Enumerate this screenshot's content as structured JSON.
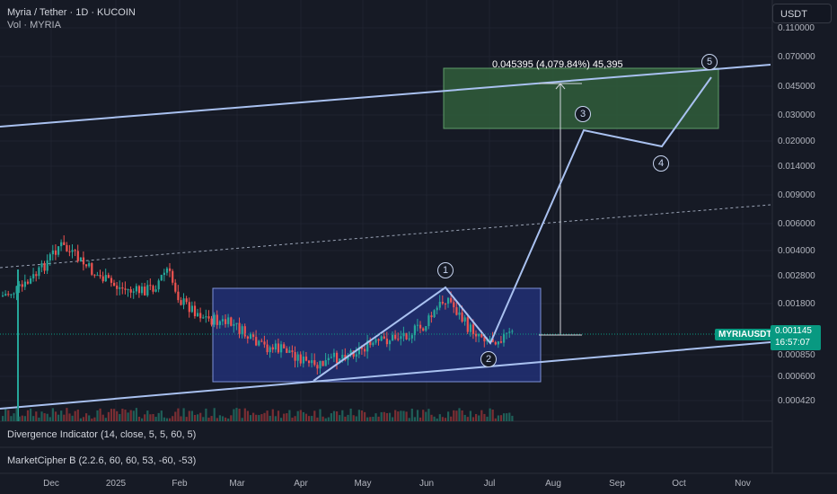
{
  "header": {
    "title": "Myria / Tether · 1D · KUCOIN",
    "volume_label": "Vol · MYRIA",
    "currency_button": "USDT"
  },
  "price_axis": {
    "ticks": [
      "0.110000",
      "0.070000",
      "0.045000",
      "0.030000",
      "0.020000",
      "0.014000",
      "0.009000",
      "0.006000",
      "0.004000",
      "0.002800",
      "0.001800",
      "0.000850",
      "0.000600",
      "0.000420"
    ]
  },
  "time_axis": {
    "ticks": [
      "Dec",
      "2025",
      "Feb",
      "Mar",
      "Apr",
      "May",
      "Jun",
      "Jul",
      "Aug",
      "Sep",
      "Oct",
      "Nov"
    ]
  },
  "symbol_tag": "MYRIAUSDT",
  "price_tag": {
    "price": "0.001145",
    "countdown": "16:57:07"
  },
  "measurement_label": "0.045395 (4,079.84%) 45,395",
  "wave_labels": [
    "1",
    "2",
    "3",
    "4",
    "5"
  ],
  "indicators": [
    "Divergence Indicator (14, close, 5, 5, 60, 5)",
    "MarketCipher B (2.2.6, 60, 60, 53, -60, -53)"
  ],
  "colors": {
    "background": "#161a25",
    "up_candle": "#26a69a",
    "down_candle": "#ef5350",
    "channel_line": "#a9c1f0",
    "target_zone": "#2f5a3a",
    "range_box": "#22317a",
    "accent": "#089981"
  },
  "chart_data": {
    "type": "candlestick",
    "symbol": "MYRIAUSDT",
    "exchange": "KUCOIN",
    "interval": "1D",
    "last_price": 0.001145,
    "y_scale": "log",
    "target_price": 0.045395,
    "target_change_pct": 4079.84,
    "waves": [
      {
        "label": "1",
        "price": 0.0021
      },
      {
        "label": "2",
        "price": 0.00095
      },
      {
        "label": "3",
        "price": 0.025
      },
      {
        "label": "4",
        "price": 0.019
      },
      {
        "label": "5",
        "price": 0.065
      }
    ]
  }
}
